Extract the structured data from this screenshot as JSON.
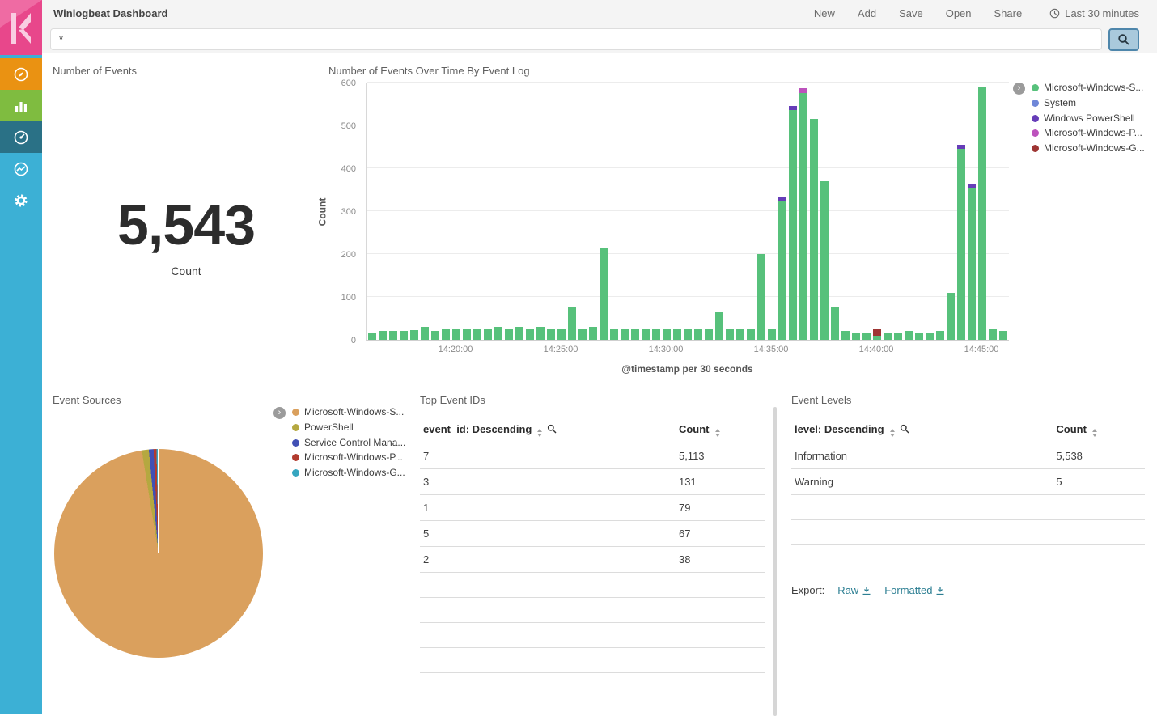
{
  "colors": {
    "sidebar_bg": "#3cb0d5",
    "logo_bg": "#e8478b",
    "link": "#2d7f93",
    "search_btn_bg": "#a9c9dc",
    "search_btn_border": "#4e86ab",
    "nav_discover_bg": "#ea9212",
    "nav_visualize_bg": "#7fbc40",
    "nav_dashboard_bg": "#2a7186",
    "topbar_bg": "#f4f4f4"
  },
  "header": {
    "title": "Winlogbeat Dashboard",
    "menu": [
      {
        "label": "New"
      },
      {
        "label": "Add"
      },
      {
        "label": "Save"
      },
      {
        "label": "Open"
      },
      {
        "label": "Share"
      }
    ],
    "time_picker": {
      "label": "Last 30 minutes"
    }
  },
  "search": {
    "value": "*"
  },
  "panels": {
    "number_of_events": {
      "title": "Number of Events",
      "value": "5,543",
      "label": "Count"
    },
    "events_over_time": {
      "title": "Number of Events Over Time By Event Log"
    },
    "event_sources": {
      "title": "Event Sources"
    },
    "top_event_ids": {
      "title": "Top Event IDs"
    },
    "event_levels": {
      "title": "Event Levels",
      "export_label": "Export:",
      "raw_label": "Raw",
      "formatted_label": "Formatted"
    }
  },
  "chart_data": [
    {
      "type": "bar",
      "title": "Number of Events Over Time By Event Log",
      "ylabel": "Count",
      "xlabel": "@timestamp per 30 seconds",
      "ylim": [
        0,
        600
      ],
      "y_ticks": [
        0,
        100,
        200,
        300,
        400,
        500,
        600
      ],
      "x_ticks": [
        {
          "label": "14:20:00",
          "index": 8
        },
        {
          "label": "14:25:00",
          "index": 18
        },
        {
          "label": "14:30:00",
          "index": 28
        },
        {
          "label": "14:35:00",
          "index": 38
        },
        {
          "label": "14:40:00",
          "index": 48
        },
        {
          "label": "14:45:00",
          "index": 58
        }
      ],
      "series": [
        {
          "key": "a",
          "label": "Microsoft-Windows-S...",
          "color": "#57c17b"
        },
        {
          "key": "b",
          "label": "System",
          "color": "#6f87d8"
        },
        {
          "key": "c",
          "label": "Windows PowerShell",
          "color": "#663db8"
        },
        {
          "key": "d",
          "label": "Microsoft-Windows-P...",
          "color": "#bc52bc"
        },
        {
          "key": "e",
          "label": "Microsoft-Windows-G...",
          "color": "#9e3533"
        }
      ],
      "bars": [
        [
          "14:16:00",
          15,
          0,
          0,
          0,
          0
        ],
        [
          "14:16:30",
          20,
          0,
          0,
          0,
          0
        ],
        [
          "14:17:00",
          20,
          0,
          0,
          0,
          0
        ],
        [
          "14:17:30",
          20,
          0,
          0,
          0,
          0
        ],
        [
          "14:18:00",
          22,
          0,
          0,
          0,
          0
        ],
        [
          "14:18:30",
          30,
          0,
          0,
          0,
          0
        ],
        [
          "14:19:00",
          20,
          0,
          0,
          0,
          0
        ],
        [
          "14:19:30",
          25,
          0,
          0,
          0,
          0
        ],
        [
          "14:20:00",
          25,
          0,
          0,
          0,
          0
        ],
        [
          "14:20:30",
          25,
          0,
          0,
          0,
          0
        ],
        [
          "14:21:00",
          25,
          0,
          0,
          0,
          0
        ],
        [
          "14:21:30",
          25,
          0,
          0,
          0,
          0
        ],
        [
          "14:22:00",
          30,
          0,
          0,
          0,
          0
        ],
        [
          "14:22:30",
          25,
          0,
          0,
          0,
          0
        ],
        [
          "14:23:00",
          30,
          0,
          0,
          0,
          0
        ],
        [
          "14:23:30",
          25,
          0,
          0,
          0,
          0
        ],
        [
          "14:24:00",
          30,
          0,
          0,
          0,
          0
        ],
        [
          "14:24:30",
          25,
          0,
          0,
          0,
          0
        ],
        [
          "14:25:00",
          25,
          0,
          0,
          0,
          0
        ],
        [
          "14:25:30",
          75,
          0,
          0,
          0,
          0
        ],
        [
          "14:26:00",
          25,
          0,
          0,
          0,
          0
        ],
        [
          "14:26:30",
          30,
          0,
          0,
          0,
          0
        ],
        [
          "14:27:00",
          215,
          0,
          0,
          0,
          0
        ],
        [
          "14:27:30",
          25,
          0,
          0,
          0,
          0
        ],
        [
          "14:28:00",
          25,
          0,
          0,
          0,
          0
        ],
        [
          "14:28:30",
          25,
          0,
          0,
          0,
          0
        ],
        [
          "14:29:00",
          25,
          0,
          0,
          0,
          0
        ],
        [
          "14:29:30",
          25,
          0,
          0,
          0,
          0
        ],
        [
          "14:30:00",
          25,
          0,
          0,
          0,
          0
        ],
        [
          "14:30:30",
          25,
          0,
          0,
          0,
          0
        ],
        [
          "14:31:00",
          25,
          0,
          0,
          0,
          0
        ],
        [
          "14:31:30",
          25,
          0,
          0,
          0,
          0
        ],
        [
          "14:32:00",
          25,
          0,
          0,
          0,
          0
        ],
        [
          "14:32:30",
          65,
          0,
          0,
          0,
          0
        ],
        [
          "14:33:00",
          25,
          0,
          0,
          0,
          0
        ],
        [
          "14:33:30",
          25,
          0,
          0,
          0,
          0
        ],
        [
          "14:34:00",
          25,
          0,
          0,
          0,
          0
        ],
        [
          "14:34:30",
          200,
          0,
          0,
          0,
          0
        ],
        [
          "14:35:00",
          25,
          0,
          0,
          0,
          0
        ],
        [
          "14:35:30",
          325,
          0,
          8,
          0,
          0
        ],
        [
          "14:36:00",
          535,
          0,
          10,
          0,
          0
        ],
        [
          "14:36:30",
          575,
          0,
          0,
          12,
          0
        ],
        [
          "14:37:00",
          515,
          0,
          0,
          0,
          0
        ],
        [
          "14:37:30",
          370,
          0,
          0,
          0,
          0
        ],
        [
          "14:38:00",
          75,
          0,
          0,
          0,
          0
        ],
        [
          "14:38:30",
          20,
          0,
          0,
          0,
          0
        ],
        [
          "14:39:00",
          15,
          0,
          0,
          0,
          0
        ],
        [
          "14:39:30",
          15,
          0,
          0,
          0,
          0
        ],
        [
          "14:40:00",
          10,
          0,
          0,
          0,
          15
        ],
        [
          "14:40:30",
          15,
          0,
          0,
          0,
          0
        ],
        [
          "14:41:00",
          15,
          0,
          0,
          0,
          0
        ],
        [
          "14:41:30",
          20,
          0,
          0,
          0,
          0
        ],
        [
          "14:42:00",
          15,
          0,
          0,
          0,
          0
        ],
        [
          "14:42:30",
          15,
          0,
          0,
          0,
          0
        ],
        [
          "14:43:00",
          20,
          0,
          0,
          0,
          0
        ],
        [
          "14:43:30",
          110,
          0,
          0,
          0,
          0
        ],
        [
          "14:44:00",
          445,
          0,
          10,
          0,
          0
        ],
        [
          "14:44:30",
          355,
          0,
          10,
          0,
          0
        ],
        [
          "14:45:00",
          590,
          0,
          0,
          0,
          0
        ],
        [
          "14:45:30",
          25,
          0,
          0,
          0,
          0
        ],
        [
          "14:46:00",
          20,
          0,
          0,
          0,
          0
        ]
      ]
    },
    {
      "type": "pie",
      "title": "Event Sources",
      "slices": [
        {
          "label": "Microsoft-Windows-S...",
          "value": 5400,
          "color": "#daa05d"
        },
        {
          "label": "PowerShell",
          "value": 60,
          "color": "#b5a840"
        },
        {
          "label": "Service Control Mana...",
          "value": 40,
          "color": "#4150b5"
        },
        {
          "label": "Microsoft-Windows-P...",
          "value": 25,
          "color": "#b23b2e"
        },
        {
          "label": "Microsoft-Windows-G...",
          "value": 18,
          "color": "#36a6c0"
        }
      ]
    },
    {
      "type": "table",
      "title": "Top Event IDs",
      "columns": [
        {
          "label": "event_id: Descending",
          "sortable": true,
          "filterable": true
        },
        {
          "label": "Count",
          "sortable": true,
          "filterable": false
        }
      ],
      "rows": [
        [
          "7",
          "5,113"
        ],
        [
          "3",
          "131"
        ],
        [
          "1",
          "79"
        ],
        [
          "5",
          "67"
        ],
        [
          "2",
          "38"
        ]
      ],
      "empty_rows": 4
    },
    {
      "type": "table",
      "title": "Event Levels",
      "columns": [
        {
          "label": "level: Descending",
          "sortable": true,
          "filterable": true
        },
        {
          "label": "Count",
          "sortable": true,
          "filterable": false
        }
      ],
      "rows": [
        [
          "Information",
          "5,538"
        ],
        [
          "Warning",
          "5"
        ]
      ],
      "empty_rows": 2
    }
  ]
}
